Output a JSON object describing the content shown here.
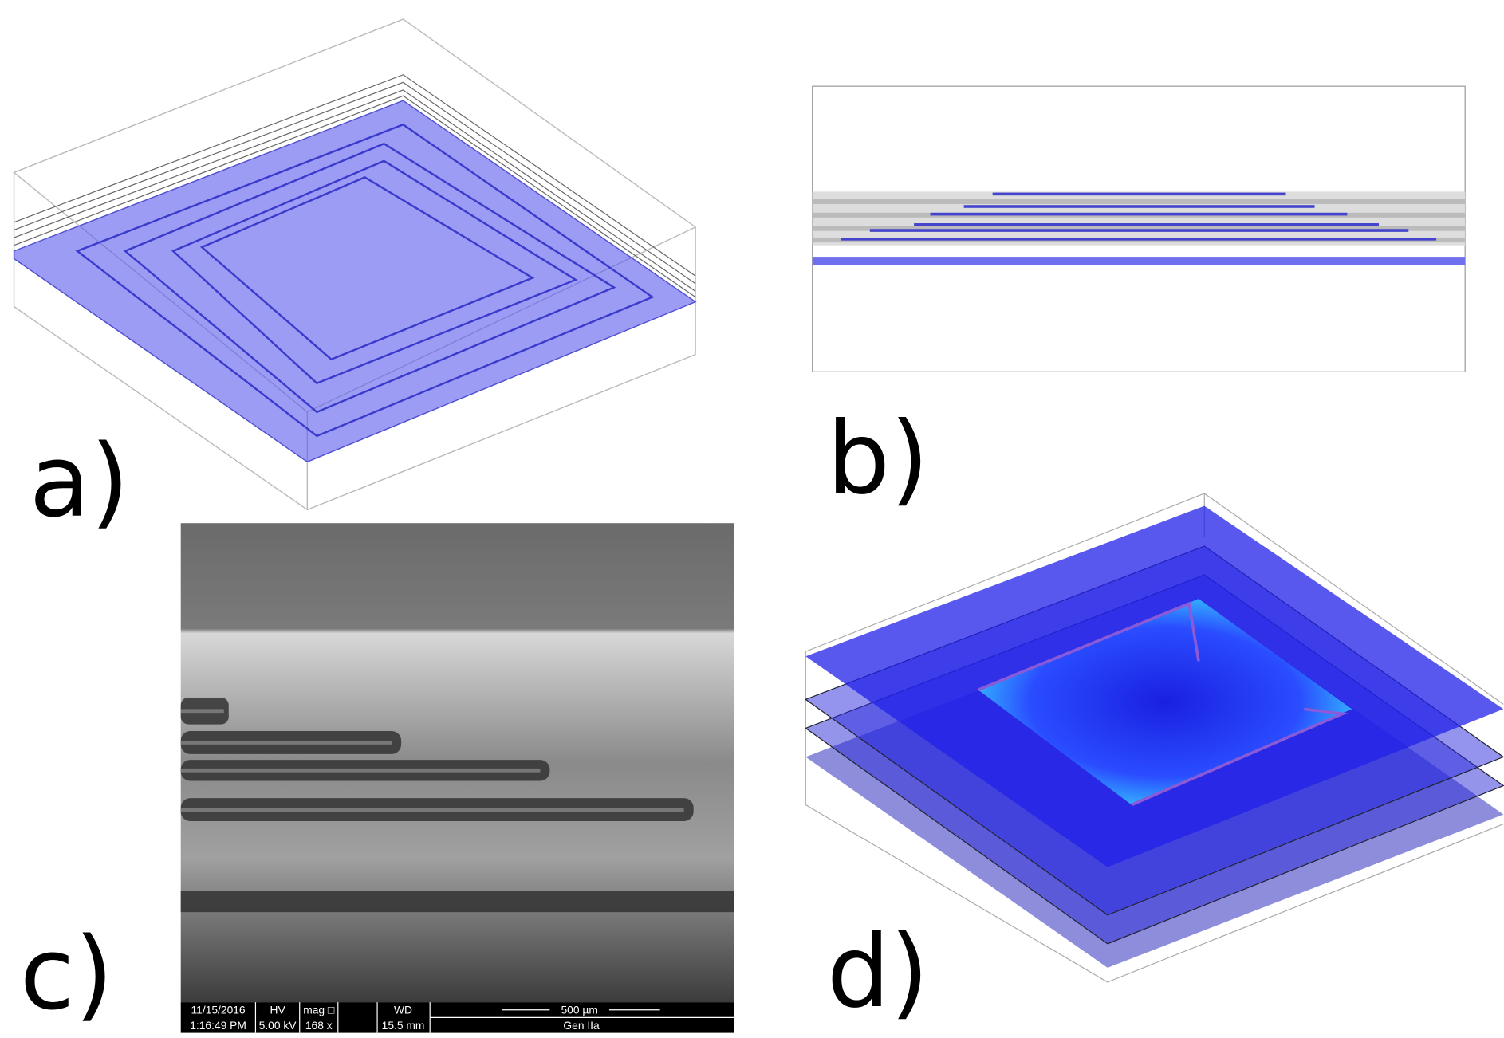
{
  "panels": [
    {
      "label": "a)"
    },
    {
      "label": "b)"
    },
    {
      "label": "c)"
    },
    {
      "label": "d)"
    }
  ],
  "sem_info": {
    "date": "11/15/2016",
    "time": "1:16:49 PM",
    "hv_label": "HV",
    "hv": "5.00 kV",
    "mag_label": "mag □",
    "mag": "168 x",
    "wd_label": "WD",
    "wd": "15.5 mm",
    "scale": "500 µm",
    "detector": "Gen IIa"
  }
}
